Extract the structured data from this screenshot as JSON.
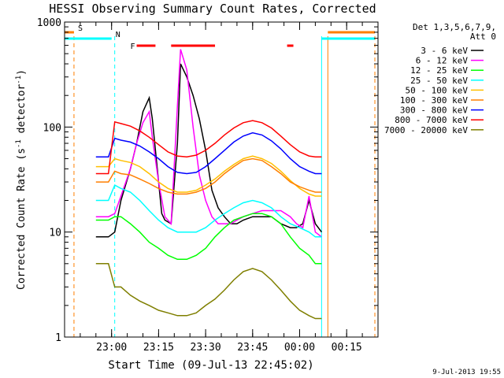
{
  "chart_data": {
    "type": "line",
    "title": "HESSI Observing Summary Count Rates, Corrected",
    "xlabel": "Start Time (09-Jul-13 22:45:02)",
    "ylabel_main": "Corrected Count Rate (s",
    "ylabel_sup1": "-1",
    "ylabel_mid": " detector",
    "ylabel_sup2": "-1",
    "ylabel_end": ")",
    "yscale": "log",
    "ylim": [
      1,
      1000
    ],
    "y_ticks": [
      {
        "value": 1,
        "label": "1"
      },
      {
        "value": 10,
        "label": "10"
      },
      {
        "value": 100,
        "label": "100"
      },
      {
        "value": 1000,
        "label": "1000"
      }
    ],
    "xlim": [
      "22:45",
      "00:25"
    ],
    "x_ticks": [
      {
        "value": "23:00",
        "label": "23:00"
      },
      {
        "value": "23:15",
        "label": "23:15"
      },
      {
        "value": "23:30",
        "label": "23:30"
      },
      {
        "value": "23:45",
        "label": "23:45"
      },
      {
        "value": "00:00",
        "label": "00:00"
      },
      {
        "value": "00:15",
        "label": "00:15"
      }
    ],
    "legend_title": [
      "Det 1,3,5,6,7,9,",
      "Att 0"
    ],
    "legend_placement": "right",
    "timestamp": "9-Jul-2013 19:55",
    "series": [
      {
        "name": "3 - 6 keV",
        "color": "#000000",
        "x": [
          "22:55",
          "22:57",
          "22:59",
          "23:01",
          "23:03",
          "23:06",
          "23:08",
          "23:10",
          "23:12",
          "23:13",
          "23:15",
          "23:16",
          "23:17",
          "23:19",
          "23:21",
          "23:22",
          "23:24",
          "23:26",
          "23:28",
          "23:30",
          "23:32",
          "23:34",
          "23:36",
          "23:38",
          "23:40",
          "23:42",
          "23:45",
          "23:48",
          "23:51",
          "23:54",
          "23:57",
          "23:59",
          "00:01",
          "00:03",
          "00:05",
          "00:07"
        ],
        "y": [
          9,
          9,
          9,
          10,
          20,
          40,
          70,
          140,
          190,
          120,
          30,
          15,
          13,
          12,
          70,
          400,
          300,
          200,
          120,
          60,
          25,
          17,
          14,
          12,
          12,
          13,
          14,
          14,
          14,
          12,
          11,
          11,
          12,
          20,
          12,
          10
        ]
      },
      {
        "name": "6 - 12 keV",
        "color": "#ff00ff",
        "x": [
          "22:55",
          "22:57",
          "22:59",
          "23:01",
          "23:03",
          "23:06",
          "23:08",
          "23:10",
          "23:12",
          "23:13",
          "23:15",
          "23:17",
          "23:19",
          "23:21",
          "23:22",
          "23:24",
          "23:26",
          "23:28",
          "23:30",
          "23:32",
          "23:34",
          "23:36",
          "23:38",
          "23:40",
          "23:42",
          "23:45",
          "23:48",
          "23:51",
          "23:54",
          "23:57",
          "23:59",
          "00:01",
          "00:03",
          "00:05",
          "00:07"
        ],
        "y": [
          14,
          14,
          14,
          15,
          22,
          40,
          70,
          110,
          140,
          80,
          30,
          14,
          12,
          160,
          550,
          350,
          100,
          35,
          20,
          14,
          12,
          12,
          12,
          13,
          14,
          15,
          16,
          16,
          16,
          14,
          12,
          11,
          22,
          10,
          9
        ]
      },
      {
        "name": "12 - 25 keV",
        "color": "#00ff00",
        "x": [
          "22:55",
          "22:57",
          "22:59",
          "23:01",
          "23:03",
          "23:06",
          "23:09",
          "23:12",
          "23:15",
          "23:18",
          "23:21",
          "23:24",
          "23:27",
          "23:30",
          "23:33",
          "23:36",
          "23:39",
          "23:42",
          "23:45",
          "23:48",
          "23:51",
          "23:54",
          "23:57",
          "00:00",
          "00:03",
          "00:05",
          "00:07"
        ],
        "y": [
          13,
          13,
          13,
          14,
          14,
          12,
          10,
          8,
          7,
          6,
          5.5,
          5.5,
          6,
          7,
          9,
          11,
          13,
          14,
          15,
          15,
          14,
          12,
          9,
          7,
          6,
          5,
          5
        ]
      },
      {
        "name": "25 - 50 keV",
        "color": "#00ffff",
        "x": [
          "22:55",
          "22:57",
          "22:59",
          "23:01",
          "23:03",
          "23:06",
          "23:09",
          "23:12",
          "23:15",
          "23:18",
          "23:21",
          "23:24",
          "23:27",
          "23:30",
          "23:33",
          "23:36",
          "23:39",
          "23:42",
          "23:45",
          "23:48",
          "23:51",
          "23:54",
          "23:57",
          "00:00",
          "00:03",
          "00:05",
          "00:07"
        ],
        "y": [
          20,
          20,
          20,
          28,
          26,
          24,
          20,
          16,
          13,
          11,
          10,
          10,
          10,
          11,
          13,
          15,
          17,
          19,
          20,
          19,
          17,
          14,
          12,
          11,
          10,
          9,
          9
        ]
      },
      {
        "name": "50 - 100 keV",
        "color": "#ffbf00",
        "x": [
          "22:55",
          "22:57",
          "22:59",
          "23:01",
          "23:03",
          "23:06",
          "23:09",
          "23:12",
          "23:15",
          "23:18",
          "23:21",
          "23:24",
          "23:27",
          "23:30",
          "23:33",
          "23:36",
          "23:39",
          "23:42",
          "23:45",
          "23:48",
          "23:51",
          "23:54",
          "23:57",
          "00:00",
          "00:03",
          "00:05",
          "00:07"
        ],
        "y": [
          42,
          42,
          42,
          50,
          48,
          46,
          42,
          36,
          30,
          26,
          24,
          24,
          25,
          28,
          32,
          38,
          44,
          50,
          53,
          50,
          45,
          38,
          31,
          26,
          23,
          22,
          22
        ]
      },
      {
        "name": "100 - 300 keV",
        "color": "#ff7f00",
        "x": [
          "22:55",
          "22:57",
          "22:59",
          "23:01",
          "23:03",
          "23:06",
          "23:09",
          "23:12",
          "23:15",
          "23:18",
          "23:21",
          "23:24",
          "23:27",
          "23:30",
          "23:33",
          "23:36",
          "23:39",
          "23:42",
          "23:45",
          "23:48",
          "23:51",
          "23:54",
          "23:57",
          "00:00",
          "00:03",
          "00:05",
          "00:07"
        ],
        "y": [
          30,
          30,
          30,
          38,
          36,
          35,
          32,
          29,
          26,
          24,
          23,
          23,
          24,
          26,
          30,
          36,
          42,
          48,
          50,
          48,
          42,
          36,
          30,
          27,
          25,
          24,
          24
        ]
      },
      {
        "name": "300 - 800 keV",
        "color": "#0000ff",
        "x": [
          "22:55",
          "22:57",
          "22:59",
          "23:01",
          "23:03",
          "23:06",
          "23:09",
          "23:12",
          "23:15",
          "23:18",
          "23:21",
          "23:24",
          "23:27",
          "23:30",
          "23:33",
          "23:36",
          "23:39",
          "23:42",
          "23:45",
          "23:48",
          "23:51",
          "23:54",
          "23:57",
          "00:00",
          "00:03",
          "00:05",
          "00:07"
        ],
        "y": [
          52,
          52,
          52,
          78,
          75,
          72,
          66,
          58,
          50,
          42,
          37,
          36,
          37,
          42,
          50,
          60,
          72,
          82,
          88,
          84,
          74,
          62,
          50,
          42,
          38,
          36,
          36
        ]
      },
      {
        "name": "800 - 7000 keV",
        "color": "#ff0000",
        "x": [
          "22:55",
          "22:57",
          "22:59",
          "23:01",
          "23:03",
          "23:06",
          "23:09",
          "23:12",
          "23:15",
          "23:18",
          "23:21",
          "23:24",
          "23:27",
          "23:30",
          "23:33",
          "23:36",
          "23:39",
          "23:42",
          "23:45",
          "23:48",
          "23:51",
          "23:54",
          "23:57",
          "00:00",
          "00:03",
          "00:05",
          "00:07"
        ],
        "y": [
          36,
          36,
          36,
          112,
          108,
          102,
          92,
          80,
          68,
          58,
          53,
          52,
          54,
          60,
          70,
          84,
          98,
          110,
          115,
          110,
          98,
          82,
          68,
          58,
          53,
          52,
          52
        ]
      },
      {
        "name": "7000 - 20000 keV",
        "color": "#7f7f00",
        "x": [
          "22:55",
          "22:57",
          "22:59",
          "23:01",
          "23:03",
          "23:06",
          "23:09",
          "23:12",
          "23:15",
          "23:18",
          "23:21",
          "23:24",
          "23:27",
          "23:30",
          "23:33",
          "23:36",
          "23:39",
          "23:42",
          "23:45",
          "23:48",
          "23:51",
          "23:54",
          "23:57",
          "00:00",
          "00:03",
          "00:05",
          "00:07"
        ],
        "y": [
          5,
          5,
          5,
          3,
          3,
          2.5,
          2.2,
          2,
          1.8,
          1.7,
          1.6,
          1.6,
          1.7,
          2,
          2.3,
          2.8,
          3.5,
          4.2,
          4.5,
          4.2,
          3.5,
          2.8,
          2.2,
          1.8,
          1.6,
          1.5,
          1.5
        ]
      }
    ],
    "flag_bars": [
      {
        "label": "S",
        "color": "#ff7f00",
        "segments": [
          [
            "22:45",
            "22:48"
          ],
          [
            "00:09",
            "00:24"
          ]
        ]
      },
      {
        "label": "N",
        "color": "#00ffff",
        "segments": [
          [
            "22:45",
            "23:00"
          ],
          [
            "00:07",
            "00:24"
          ]
        ]
      },
      {
        "label": "F",
        "color": "#ff0000",
        "segments": [
          [
            "23:08",
            "23:14"
          ],
          [
            "23:19",
            "23:33"
          ],
          [
            "23:56",
            "23:58"
          ]
        ]
      }
    ],
    "vlines": [
      {
        "at": "22:48",
        "color": "#ff7f00",
        "style": "dashed"
      },
      {
        "at": "23:01",
        "color": "#00ffff",
        "style": "dashed"
      },
      {
        "at": "00:07",
        "color": "#00ffff",
        "style": "solid"
      },
      {
        "at": "00:09",
        "color": "#ff7f00",
        "style": "solid"
      },
      {
        "at": "00:24",
        "color": "#ff7f00",
        "style": "dashed"
      }
    ]
  }
}
